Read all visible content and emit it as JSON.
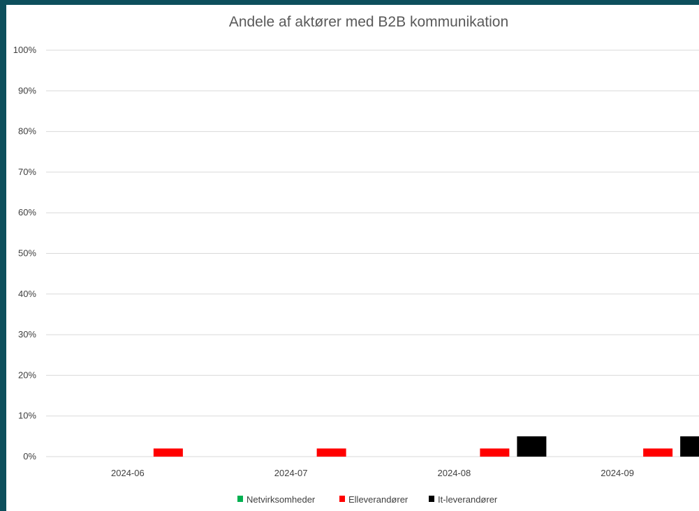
{
  "chart_data": {
    "type": "bar",
    "title": "Andele af aktører med B2B kommunikation",
    "xlabel": "",
    "ylabel": "",
    "categories": [
      "2024-06",
      "2024-07",
      "2024-08",
      "2024-09"
    ],
    "ylim": [
      0,
      100
    ],
    "yticks": [
      "0%",
      "10%",
      "20%",
      "30%",
      "40%",
      "50%",
      "60%",
      "70%",
      "80%",
      "90%",
      "100%"
    ],
    "grid": true,
    "legend_position": "bottom",
    "series": [
      {
        "name": "Netvirksomheder",
        "color": "#00b050",
        "values": [
          0,
          0,
          0,
          0
        ]
      },
      {
        "name": "Elleverandører",
        "color": "#ff0000",
        "values": [
          2,
          2,
          2,
          2
        ]
      },
      {
        "name": "It-leverandører",
        "color": "#000000",
        "values": [
          0,
          0,
          5,
          5
        ]
      }
    ]
  }
}
